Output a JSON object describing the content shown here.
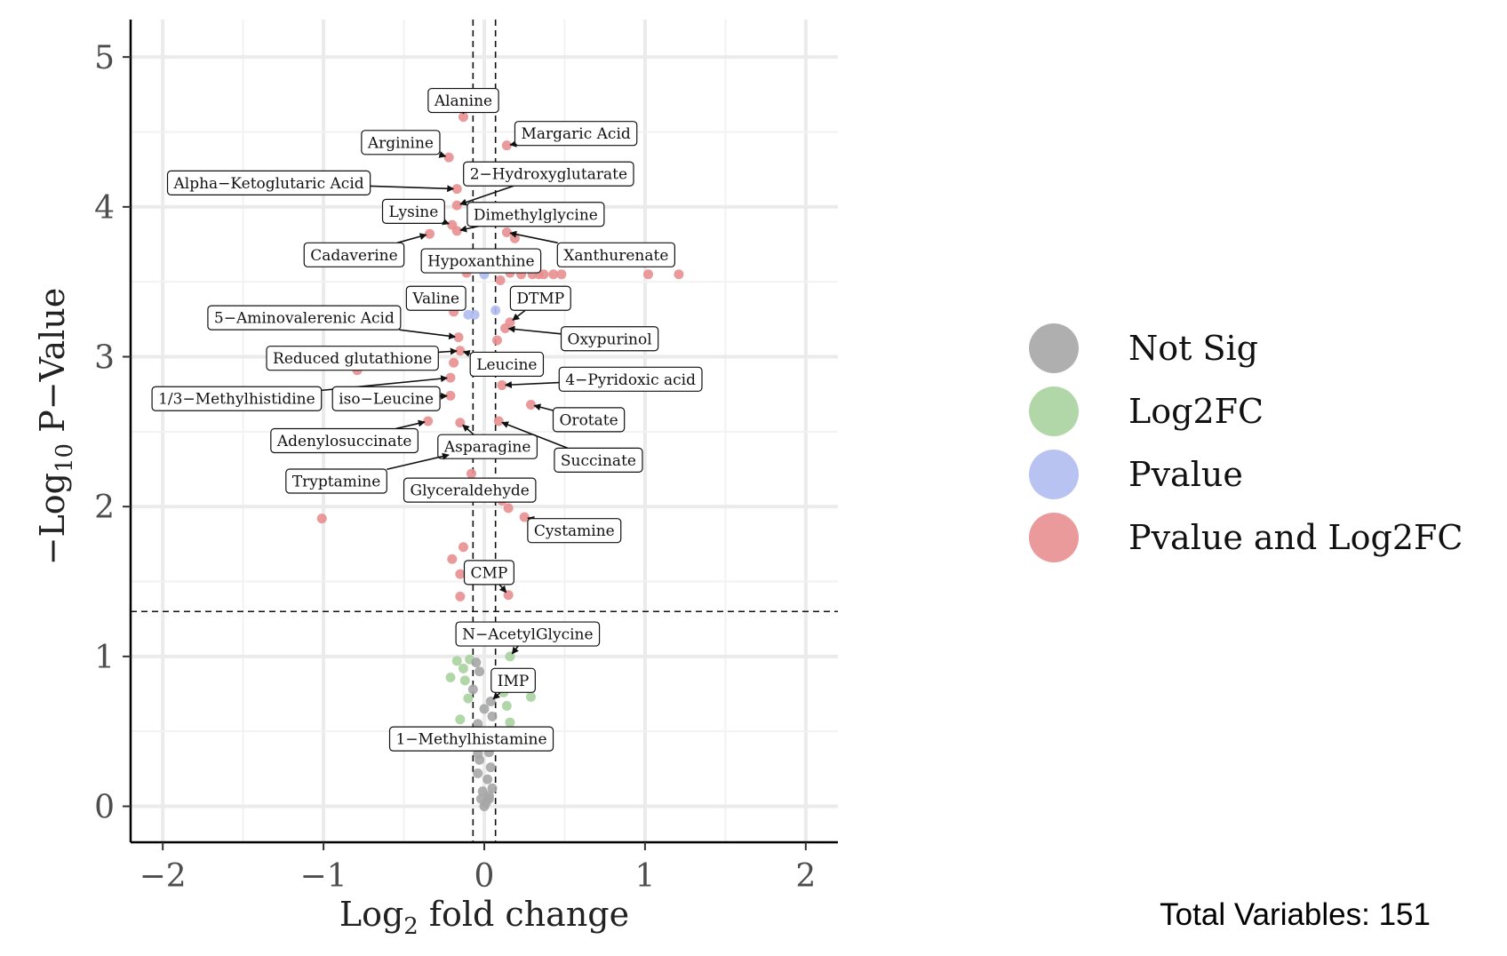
{
  "chart_data": {
    "type": "scatter",
    "xlabel_main": "Log",
    "xlabel_sub": "2",
    "xlabel_rest": " fold change",
    "ylabel_prefix": "−Log",
    "ylabel_sub": "10",
    "ylabel_rest": " P−Value",
    "xlim": [
      -2.2,
      2.2
    ],
    "ylim": [
      -0.24,
      5.25
    ],
    "x_ticks": [
      -2,
      -1,
      0,
      1,
      2
    ],
    "x_tick_labels": [
      "−2",
      "−1",
      "0",
      "1",
      "2"
    ],
    "y_ticks": [
      0,
      1,
      2,
      3,
      4,
      5
    ],
    "y_tick_labels": [
      "0",
      "1",
      "2",
      "3",
      "4",
      "5"
    ],
    "grid": true,
    "cutoffs": {
      "fc_low": -0.07,
      "fc_high": 0.07,
      "pvalue_line": 1.3
    },
    "colors": {
      "Not Sig": "#a6a6a6",
      "Log2FC": "#a9d3a0",
      "Pvalue": "#b0bdf0",
      "Pvalue and Log2FC": "#e88f90"
    },
    "legend": {
      "placement": "right",
      "entries": [
        "Not Sig",
        "Log2FC",
        "Pvalue",
        "Pvalue and Log2FC"
      ]
    },
    "series": [
      {
        "name": "Pvalue and Log2FC",
        "points": [
          [
            -0.13,
            4.6
          ],
          [
            0.14,
            4.41
          ],
          [
            -0.22,
            4.33
          ],
          [
            -0.17,
            4.12
          ],
          [
            -0.17,
            4.01
          ],
          [
            -0.2,
            3.88
          ],
          [
            -0.17,
            3.84
          ],
          [
            0.14,
            3.83
          ],
          [
            -0.34,
            3.82
          ],
          [
            0.19,
            3.79
          ],
          [
            -0.11,
            3.56
          ],
          [
            0.16,
            3.56
          ],
          [
            0.23,
            3.55
          ],
          [
            0.34,
            3.55
          ],
          [
            0.43,
            3.55
          ],
          [
            0.48,
            3.55
          ],
          [
            1.02,
            3.55
          ],
          [
            1.21,
            3.55
          ],
          [
            0.1,
            3.51
          ],
          [
            0.37,
            3.55
          ],
          [
            0.3,
            3.55
          ],
          [
            -0.19,
            3.3
          ],
          [
            0.16,
            3.23
          ],
          [
            0.13,
            3.19
          ],
          [
            0.08,
            3.11
          ],
          [
            -0.16,
            3.13
          ],
          [
            -0.15,
            3.04
          ],
          [
            -0.19,
            2.96
          ],
          [
            -0.79,
            2.91
          ],
          [
            -0.21,
            2.86
          ],
          [
            -0.21,
            2.74
          ],
          [
            0.11,
            2.81
          ],
          [
            0.29,
            2.68
          ],
          [
            -0.35,
            2.57
          ],
          [
            -0.15,
            2.56
          ],
          [
            0.09,
            2.57
          ],
          [
            -0.2,
            2.35
          ],
          [
            -0.08,
            2.22
          ],
          [
            0.11,
            2.04
          ],
          [
            0.15,
            1.99
          ],
          [
            0.25,
            1.93
          ],
          [
            -1.01,
            1.92
          ],
          [
            -0.13,
            1.73
          ],
          [
            -0.2,
            1.65
          ],
          [
            -0.15,
            1.55
          ],
          [
            0.15,
            1.41
          ],
          [
            -0.15,
            1.4
          ]
        ]
      },
      {
        "name": "Pvalue",
        "points": [
          [
            0.0,
            3.55
          ],
          [
            -0.06,
            3.28
          ],
          [
            0.07,
            3.31
          ],
          [
            -0.1,
            3.28
          ]
        ]
      },
      {
        "name": "Log2FC",
        "points": [
          [
            0.16,
            1.0
          ],
          [
            -0.09,
            0.98
          ],
          [
            -0.17,
            0.97
          ],
          [
            -0.13,
            0.92
          ],
          [
            -0.21,
            0.86
          ],
          [
            -0.12,
            0.84
          ],
          [
            0.12,
            0.76
          ],
          [
            0.29,
            0.73
          ],
          [
            -0.1,
            0.72
          ],
          [
            0.14,
            0.67
          ],
          [
            -0.15,
            0.58
          ],
          [
            0.16,
            0.56
          ]
        ]
      },
      {
        "name": "Not Sig",
        "points": [
          [
            -0.05,
            0.96
          ],
          [
            -0.03,
            0.9
          ],
          [
            0.04,
            0.7
          ],
          [
            -0.07,
            0.78
          ],
          [
            0.0,
            0.65
          ],
          [
            0.05,
            0.6
          ],
          [
            -0.04,
            0.55
          ],
          [
            0.02,
            0.48
          ],
          [
            -0.02,
            0.42
          ],
          [
            0.03,
            0.36
          ],
          [
            -0.03,
            0.31
          ],
          [
            0.04,
            0.26
          ],
          [
            -0.04,
            0.22
          ],
          [
            0.02,
            0.18
          ],
          [
            0.05,
            0.12
          ],
          [
            -0.01,
            0.1
          ],
          [
            0.03,
            0.07
          ],
          [
            -0.02,
            0.05
          ],
          [
            0.01,
            0.02
          ],
          [
            0.0,
            0.0
          ],
          [
            0.03,
            0.05
          ],
          [
            -0.04,
            0.35
          ]
        ]
      }
    ],
    "annotations": [
      {
        "label": "Alanine",
        "x": -0.13,
        "y": 4.6,
        "lx": -0.13,
        "ly": 4.71
      },
      {
        "label": "Margaric Acid",
        "x": 0.14,
        "y": 4.41,
        "lx": 0.57,
        "ly": 4.49
      },
      {
        "label": "Arginine",
        "x": -0.22,
        "y": 4.33,
        "lx": -0.52,
        "ly": 4.43
      },
      {
        "label": "2−Hydroxyglutarate",
        "x": -0.17,
        "y": 4.01,
        "lx": 0.4,
        "ly": 4.22
      },
      {
        "label": "Alpha−Ketoglutaric Acid",
        "x": -0.17,
        "y": 4.12,
        "lx": -1.34,
        "ly": 4.16
      },
      {
        "label": "Lysine",
        "x": -0.2,
        "y": 3.88,
        "lx": -0.44,
        "ly": 3.97
      },
      {
        "label": "Dimethylglycine",
        "x": -0.17,
        "y": 3.84,
        "lx": 0.32,
        "ly": 3.95
      },
      {
        "label": "Cadaverine",
        "x": -0.34,
        "y": 3.82,
        "lx": -0.81,
        "ly": 3.68
      },
      {
        "label": "Hypoxanthine",
        "x": -0.11,
        "y": 3.56,
        "lx": -0.02,
        "ly": 3.64
      },
      {
        "label": "Xanthurenate",
        "x": 0.14,
        "y": 3.83,
        "lx": 0.82,
        "ly": 3.68
      },
      {
        "label": "Valine",
        "x": -0.19,
        "y": 3.3,
        "lx": -0.3,
        "ly": 3.39
      },
      {
        "label": "DTMP",
        "x": 0.16,
        "y": 3.23,
        "lx": 0.35,
        "ly": 3.39
      },
      {
        "label": "5−Aminovalerenic Acid",
        "x": -0.16,
        "y": 3.13,
        "lx": -1.12,
        "ly": 3.26
      },
      {
        "label": "Oxypurinol",
        "x": 0.13,
        "y": 3.19,
        "lx": 0.78,
        "ly": 3.12
      },
      {
        "label": "Reduced glutathione",
        "x": -0.15,
        "y": 3.04,
        "lx": -0.82,
        "ly": 2.99
      },
      {
        "label": "Leucine",
        "x": -0.15,
        "y": 3.04,
        "lx": 0.14,
        "ly": 2.95
      },
      {
        "label": "4−Pyridoxic acid",
        "x": 0.11,
        "y": 2.81,
        "lx": 0.91,
        "ly": 2.85
      },
      {
        "label": "1/3−Methylhistidine",
        "x": -0.21,
        "y": 2.86,
        "lx": -1.54,
        "ly": 2.72
      },
      {
        "label": "iso−Leucine",
        "x": -0.21,
        "y": 2.74,
        "lx": -0.61,
        "ly": 2.72
      },
      {
        "label": "Orotate",
        "x": 0.29,
        "y": 2.68,
        "lx": 0.65,
        "ly": 2.58
      },
      {
        "label": "Adenylosuccinate",
        "x": -0.35,
        "y": 2.57,
        "lx": -0.87,
        "ly": 2.44
      },
      {
        "label": "Asparagine",
        "x": -0.15,
        "y": 2.56,
        "lx": 0.02,
        "ly": 2.4
      },
      {
        "label": "Succinate",
        "x": 0.09,
        "y": 2.57,
        "lx": 0.71,
        "ly": 2.31
      },
      {
        "label": "Tryptamine",
        "x": -0.2,
        "y": 2.35,
        "lx": -0.92,
        "ly": 2.17
      },
      {
        "label": "Glyceraldehyde",
        "x": 0.11,
        "y": 2.04,
        "lx": -0.09,
        "ly": 2.11
      },
      {
        "label": "Cystamine",
        "x": 0.25,
        "y": 1.93,
        "lx": 0.56,
        "ly": 1.84
      },
      {
        "label": "CMP",
        "x": 0.15,
        "y": 1.41,
        "lx": 0.03,
        "ly": 1.56
      },
      {
        "label": "N−AcetylGlycine",
        "x": 0.16,
        "y": 1.0,
        "lx": 0.27,
        "ly": 1.15
      },
      {
        "label": "IMP",
        "x": 0.04,
        "y": 0.7,
        "lx": 0.18,
        "ly": 0.84
      },
      {
        "label": "1−Methylhistamine",
        "x": -0.02,
        "y": 0.55,
        "lx": -0.08,
        "ly": 0.45
      }
    ]
  },
  "footer": {
    "total_variables": "Total Variables: 151"
  }
}
